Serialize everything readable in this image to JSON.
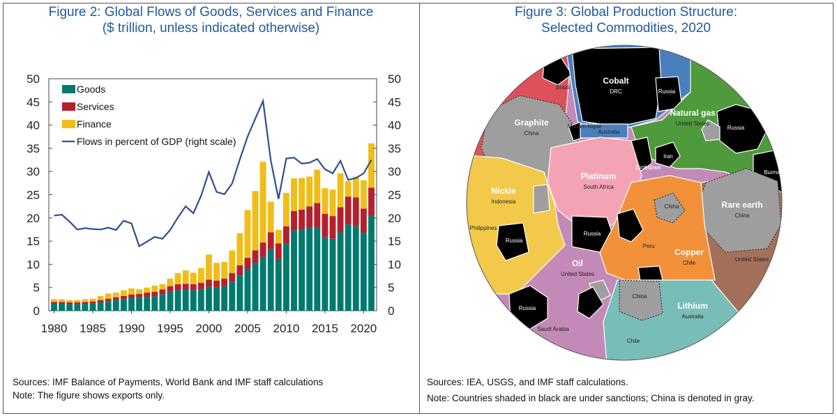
{
  "left_title": {
    "line1": "Figure 2: Global Flows of Goods, Services and Finance",
    "line2": "($ trillion, unless indicated otherwise)"
  },
  "right_title": {
    "line1": "Figure 3: Global Production Structure:",
    "line2": "Selected Commodities, 2020"
  },
  "left_notes": {
    "line1": "Sources: IMF Balance of Payments, World Bank and IMF staff calculations",
    "line2": "Note: The figure shows exports only."
  },
  "right_notes": {
    "line1": "Sources: IEA, USGS, and IMF staff calculations.",
    "line2": "Note: Countries shaded in black are under sanctions; China is denoted in gray."
  },
  "chart_data": [
    {
      "type": "bar",
      "stacked": true,
      "x_ticks": [
        1980,
        1985,
        1990,
        1995,
        2000,
        2005,
        2010,
        2015,
        2020
      ],
      "y_ticks": [
        0,
        5,
        10,
        15,
        20,
        25,
        30,
        35,
        40,
        45,
        50
      ],
      "ylim": [
        0,
        50
      ],
      "y2lim": [
        0,
        50
      ],
      "categories": [
        1980,
        1981,
        1982,
        1983,
        1984,
        1985,
        1986,
        1987,
        1988,
        1989,
        1990,
        1991,
        1992,
        1993,
        1994,
        1995,
        1996,
        1997,
        1998,
        1999,
        2000,
        2001,
        2002,
        2003,
        2004,
        2005,
        2006,
        2007,
        2008,
        2009,
        2010,
        2011,
        2012,
        2013,
        2014,
        2015,
        2016,
        2017,
        2018,
        2019,
        2020,
        2021
      ],
      "series": [
        {
          "name": "Goods",
          "color": "#007a6e",
          "values": [
            1.5,
            1.5,
            1.4,
            1.4,
            1.5,
            1.6,
            1.8,
            2.0,
            2.3,
            2.5,
            2.7,
            2.8,
            3.0,
            3.1,
            3.5,
            4.1,
            4.4,
            4.5,
            4.4,
            4.6,
            5.2,
            5.0,
            5.3,
            6.2,
            7.6,
            9.0,
            10.3,
            11.6,
            13.3,
            11.2,
            14.5,
            17.3,
            17.5,
            17.9,
            18.0,
            15.9,
            15.5,
            16.9,
            18.6,
            18.2,
            16.8,
            20.5
          ]
        },
        {
          "name": "Services",
          "color": "#b5202e",
          "values": [
            0.4,
            0.4,
            0.4,
            0.4,
            0.4,
            0.4,
            0.5,
            0.6,
            0.6,
            0.7,
            0.8,
            0.8,
            0.9,
            1.0,
            1.1,
            1.2,
            1.3,
            1.3,
            1.3,
            1.4,
            1.5,
            1.5,
            1.6,
            1.9,
            2.2,
            2.4,
            2.7,
            3.1,
            3.6,
            3.3,
            3.7,
            4.2,
            4.3,
            4.6,
            5.2,
            5.0,
            4.9,
            5.4,
            6.0,
            6.2,
            5.2,
            6.0
          ]
        },
        {
          "name": "Finance",
          "color": "#f0bd19",
          "values": [
            0.6,
            0.6,
            0.5,
            0.5,
            0.6,
            0.6,
            0.9,
            1.1,
            1.0,
            1.2,
            1.3,
            1.0,
            1.1,
            1.3,
            1.1,
            1.6,
            2.4,
            2.9,
            2.5,
            3.2,
            5.4,
            3.8,
            3.6,
            4.9,
            6.9,
            10.3,
            12.8,
            17.4,
            6.6,
            2.9,
            7.2,
            7.0,
            6.8,
            6.4,
            7.2,
            5.5,
            5.7,
            7.3,
            3.3,
            4.5,
            6.1,
            9.6
          ]
        },
        {
          "name": "Flows in percent of GDP (right scale)",
          "color": "#2c4f8c",
          "axis": "right",
          "values": [
            20.5,
            20.7,
            19.2,
            17.5,
            17.8,
            17.6,
            17.5,
            17.9,
            17.4,
            19.4,
            18.8,
            13.9,
            14.9,
            15.9,
            15.5,
            17.4,
            20.1,
            22.5,
            21.0,
            24.8,
            29.9,
            25.6,
            25.1,
            27.4,
            32.6,
            37.5,
            41.4,
            45.2,
            32.4,
            24.1,
            32.8,
            33.0,
            31.7,
            31.9,
            32.7,
            30.5,
            29.6,
            32.3,
            28.2,
            28.6,
            29.6,
            32.5
          ]
        }
      ]
    },
    {
      "type": "voronoi treemap",
      "note": "Circular Voronoi treemap of country shares in production of selected commodities",
      "labels": [
        {
          "commodity": "Cobalt",
          "country": "DRC"
        },
        {
          "commodity": "Graphite",
          "country": "China"
        },
        {
          "commodity": "Natural gas",
          "country": "United States"
        },
        {
          "commodity": "Platinum",
          "country": "South Africa"
        },
        {
          "commodity": "Nickle",
          "country": "Indonesia"
        },
        {
          "commodity": "Rare earth",
          "country": "China"
        },
        {
          "commodity": "Copper",
          "country": "Chile"
        },
        {
          "commodity": "Oil",
          "country": "United States"
        },
        {
          "commodity": "Lithium",
          "country": "Australia"
        }
      ],
      "country_labels": {
        "brazil": "Brazil",
        "russia_cobalt": "Russia",
        "australia_cobalt": "Australia",
        "mozambique_madagascar": "Mozam-\nbique",
        "russia_gas": "Russia",
        "iran": "Iran",
        "burma": "Burma",
        "zimbabwe": "Zimbabwe",
        "philippines": "Philippines",
        "russia_nickel": "Russia",
        "russia_platinum": "Russia",
        "china_copper": "China",
        "peru": "Peru",
        "us_rare_earth": "United States",
        "russia_oil": "Russia",
        "saudi_arabia": "Saudi Arabia",
        "china_lithium": "China",
        "chile_lithium": "Chile"
      },
      "colors": {
        "cobalt": "#4a7fbd",
        "graphite": "#e0505a",
        "natural_gas": "#4e9a3c",
        "platinum": "#f4a3b5",
        "nickel": "#f2c94a",
        "rare_earth": "#a4705a",
        "copper": "#f2913a",
        "oil": "#c48ab7",
        "lithium": "#79bdb8",
        "sanctioned": "#000000",
        "china": "#9e9e9e"
      }
    }
  ]
}
